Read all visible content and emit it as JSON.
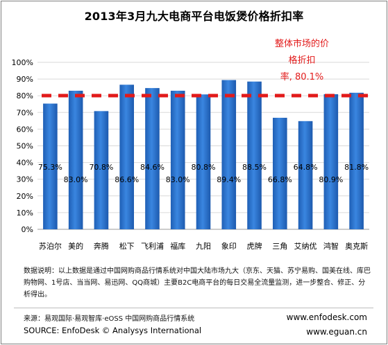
{
  "title": "2013年3月九大电商平台电饭煲价格折扣率",
  "annotation": {
    "lines": [
      "整体市场的价",
      "格折扣",
      "率, 80.1%"
    ]
  },
  "chart_data": {
    "type": "bar",
    "categories": [
      "苏泊尔",
      "美的",
      "奔腾",
      "松下",
      "飞利浦",
      "福库",
      "九阳",
      "象印",
      "虎牌",
      "三角",
      "艾纳优",
      "鸿智",
      "奥克斯"
    ],
    "values": [
      75.3,
      83.0,
      70.8,
      86.6,
      84.6,
      83.0,
      80.8,
      89.4,
      88.5,
      66.8,
      64.8,
      80.9,
      81.8
    ],
    "value_labels": [
      "75.3%",
      "83.0%",
      "70.8%",
      "86.6%",
      "84.6%",
      "83.0%",
      "80.8%",
      "89.4%",
      "88.5%",
      "66.8%",
      "64.8%",
      "80.9%",
      "81.8%"
    ],
    "y_ticks": [
      "0%",
      "10%",
      "20%",
      "30%",
      "40%",
      "50%",
      "60%",
      "70%",
      "80%",
      "90%",
      "100%"
    ],
    "ylim": [
      0,
      100
    ],
    "reference_line": {
      "value": 80.1,
      "color": "#e21a1a",
      "style": "dashed"
    },
    "bar_color": "#2b6cc4",
    "xlabel": "",
    "ylabel": ""
  },
  "footer": {
    "note": "数据说明：以上数据是通过中国网购商品行情系统对中国大陆市场九大（京东、天猫、苏宁易购、国美在线、库巴购物网、1号店、当当网、易迅网、QQ商城）主要B2C电商平台的每日交易全流量监测，进一步整合、修正、分析得出。",
    "source_cn": "来源：易观国际·易观智库·eOSS 中国网购商品行情系统",
    "source_en": "SOURCE: EnfoDesk © Analysys International",
    "web1": "www.enfodesk.com",
    "web2": "www.eguan.cn"
  }
}
